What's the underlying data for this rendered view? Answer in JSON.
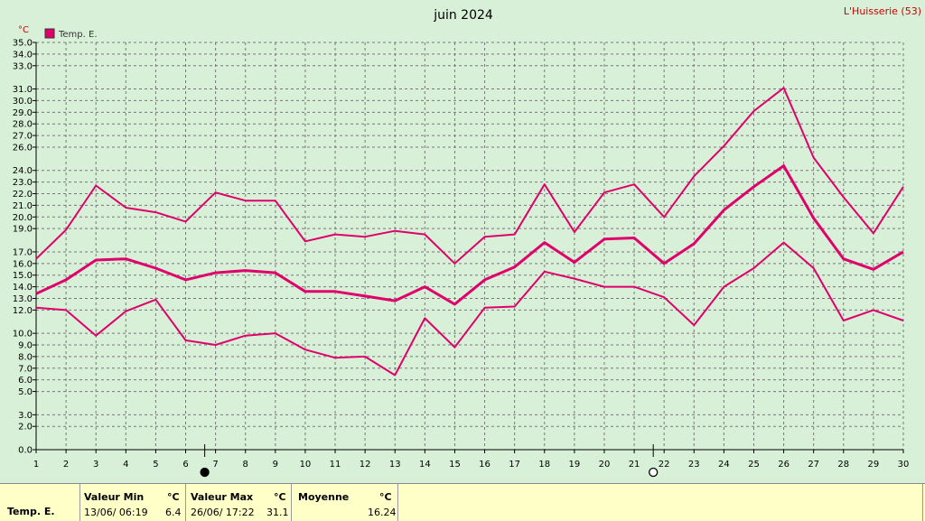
{
  "header": {
    "title": "juin 2024",
    "station": "L'Huisserie (53)",
    "unit": "°C"
  },
  "legend": {
    "label": "Temp. E.",
    "color": "#e0006c"
  },
  "chart_data": {
    "type": "line",
    "x": [
      1,
      2,
      3,
      4,
      5,
      6,
      7,
      8,
      9,
      10,
      11,
      12,
      13,
      14,
      15,
      16,
      17,
      18,
      19,
      20,
      21,
      22,
      23,
      24,
      25,
      26,
      27,
      28,
      29,
      30
    ],
    "y_ticks": [
      0.0,
      2.0,
      3.0,
      5.0,
      6.0,
      7.0,
      8.0,
      9.0,
      10.0,
      12.0,
      13.0,
      14.0,
      15.0,
      16.0,
      17.0,
      19.0,
      20.0,
      21.0,
      22.0,
      23.0,
      24.0,
      26.0,
      27.0,
      28.0,
      29.0,
      30.0,
      31.0,
      33.0,
      34.0,
      35.0
    ],
    "ylim": [
      0,
      35
    ],
    "grid": true,
    "series": [
      {
        "role": "max",
        "values": [
          16.4,
          18.9,
          22.7,
          20.8,
          20.4,
          19.6,
          22.1,
          21.4,
          21.4,
          17.9,
          18.5,
          18.3,
          18.8,
          18.5,
          16.0,
          18.3,
          18.5,
          22.8,
          18.7,
          22.1,
          22.8,
          20.0,
          23.5,
          26.1,
          29.1,
          31.1,
          25.1,
          21.7,
          18.6,
          22.6
        ]
      },
      {
        "role": "mean",
        "values": [
          13.4,
          14.6,
          16.3,
          16.4,
          15.6,
          14.6,
          15.2,
          15.4,
          15.2,
          13.6,
          13.6,
          13.2,
          12.8,
          14.0,
          12.5,
          14.6,
          15.7,
          17.8,
          16.1,
          18.1,
          18.2,
          16.0,
          17.7,
          20.6,
          22.6,
          24.4,
          19.9,
          16.4,
          15.5,
          17.0
        ]
      },
      {
        "role": "min",
        "values": [
          12.2,
          12.0,
          9.8,
          11.9,
          12.9,
          9.4,
          9.0,
          9.8,
          10.0,
          8.6,
          7.9,
          8.0,
          6.4,
          11.3,
          8.8,
          12.2,
          12.3,
          15.3,
          14.7,
          14.0,
          14.0,
          13.1,
          10.7,
          14.0,
          15.6,
          17.8,
          15.6,
          11.1,
          12.0,
          11.1
        ]
      }
    ],
    "moon_markers": [
      {
        "day": 7,
        "phase": "new"
      },
      {
        "day": 22,
        "phase": "full"
      }
    ]
  },
  "summary": {
    "row_label": "Temp. E.",
    "min": {
      "label": "Valeur Min",
      "unit": "°C",
      "when": "13/06/  06:19",
      "value": "6.4"
    },
    "max": {
      "label": "Valeur Max",
      "unit": "°C",
      "when": "26/06/  17:22",
      "value": "31.1"
    },
    "avg": {
      "label": "Moyenne",
      "unit": "°C",
      "value": "16.24"
    }
  }
}
